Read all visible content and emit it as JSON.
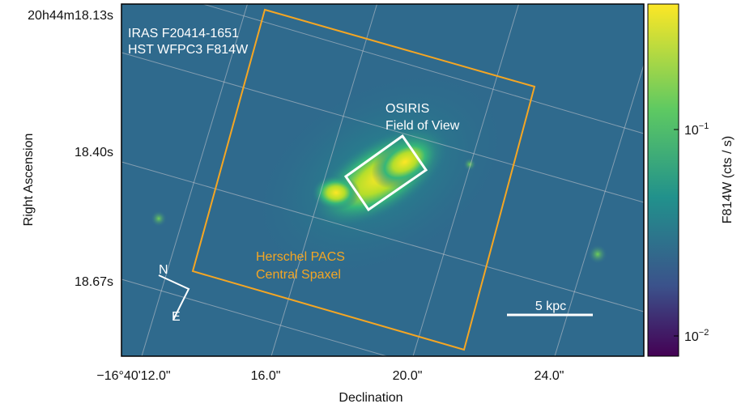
{
  "image": {
    "labels": [
      "IRAS F20414-1651",
      "HST WFPC3 F814W"
    ],
    "fov_label": [
      "OSIRIS",
      "Field of View"
    ],
    "pacs_label": [
      "Herschel PACS",
      "Central Spaxel"
    ],
    "scale_bar": "5 kpc",
    "compass": {
      "north": "N",
      "east": "E"
    }
  },
  "axes": {
    "x_label": "Declination",
    "y_label": "Right Ascension",
    "x_ticks": [
      "−16°40'12.0\"",
      "16.0\"",
      "20.0\"",
      "24.0\""
    ],
    "y_ticks": [
      "20h44m18.13s",
      "18.40s",
      "18.67s"
    ]
  },
  "colorbar": {
    "label": "F814W (cts / s)",
    "ticks": [
      {
        "base": "10",
        "exponent": "−1"
      },
      {
        "base": "10",
        "exponent": "−2"
      }
    ]
  }
}
